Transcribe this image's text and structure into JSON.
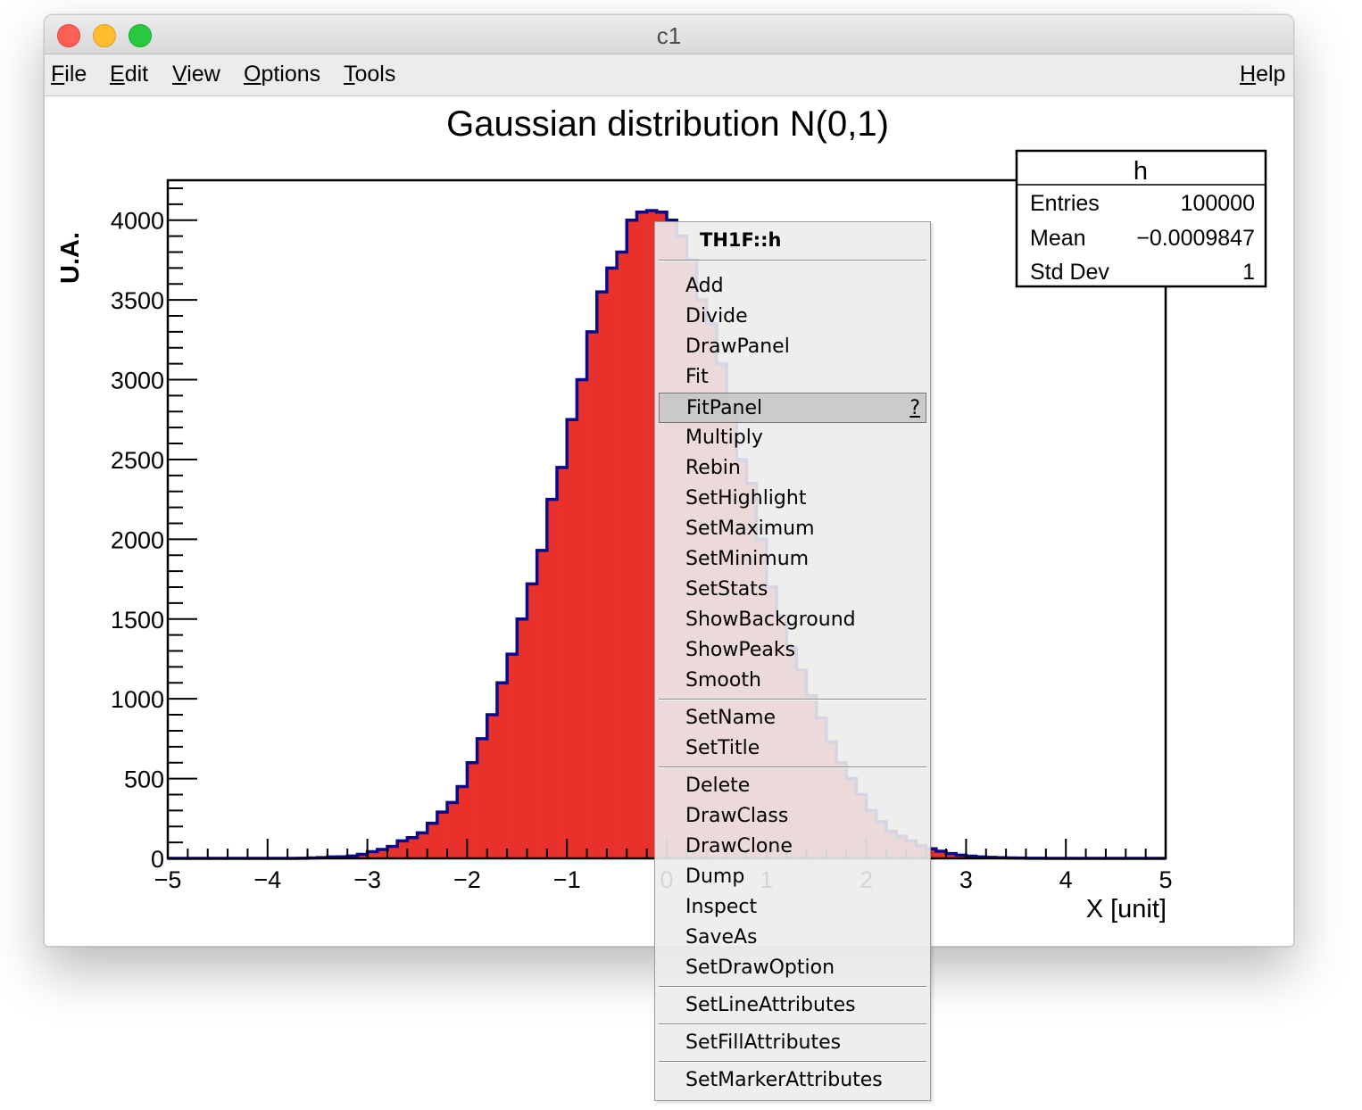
{
  "window": {
    "title": "c1",
    "menu": [
      {
        "underline": "F",
        "rest": "ile"
      },
      {
        "underline": "E",
        "rest": "dit"
      },
      {
        "underline": "V",
        "rest": "iew"
      },
      {
        "underline": "O",
        "rest": "ptions"
      },
      {
        "underline": "T",
        "rest": "ools"
      }
    ],
    "help": {
      "underline": "H",
      "rest": "elp"
    }
  },
  "colors": {
    "fill": "#e8312a",
    "line": "#0a0a8c"
  },
  "chart_data": {
    "type": "bar",
    "title": "Gaussian distribution N(0,1)",
    "xlabel": "X [unit]",
    "ylabel": "U.A.",
    "xlim": [
      -5,
      5
    ],
    "ylim": [
      0,
      4250
    ],
    "x_ticks": [
      "−5",
      "−4",
      "−3",
      "−2",
      "−1",
      "0",
      "1",
      "2",
      "3",
      "4",
      "5"
    ],
    "y_ticks": [
      "0",
      "500",
      "1000",
      "1500",
      "2000",
      "2500",
      "3000",
      "3500",
      "4000"
    ],
    "bin_low_edges": [
      -5.0,
      -4.9,
      -4.8,
      -4.7,
      -4.6,
      -4.5,
      -4.4,
      -4.3,
      -4.2,
      -4.1,
      -4.0,
      -3.9,
      -3.8,
      -3.7,
      -3.6,
      -3.5,
      -3.4,
      -3.3,
      -3.2,
      -3.1,
      -3.0,
      -2.9,
      -2.8,
      -2.7,
      -2.6,
      -2.5,
      -2.4,
      -2.3,
      -2.2,
      -2.1,
      -2.0,
      -1.9,
      -1.8,
      -1.7,
      -1.6,
      -1.5,
      -1.4,
      -1.3,
      -1.2,
      -1.1,
      -1.0,
      -0.9,
      -0.8,
      -0.7,
      -0.6,
      -0.5,
      -0.4,
      -0.3,
      -0.2,
      -0.1,
      0.0,
      0.1,
      0.2,
      0.3,
      0.4,
      0.5,
      0.6,
      0.7,
      0.8,
      0.9,
      1.0,
      1.1,
      1.2,
      1.3,
      1.4,
      1.5,
      1.6,
      1.7,
      1.8,
      1.9,
      2.0,
      2.1,
      2.2,
      2.3,
      2.4,
      2.5,
      2.6,
      2.7,
      2.8,
      2.9,
      3.0,
      3.1,
      3.2,
      3.3,
      3.4,
      3.5,
      3.6,
      3.7,
      3.8,
      3.9,
      4.0,
      4.1,
      4.2,
      4.3,
      4.4,
      4.5,
      4.6,
      4.7,
      4.8,
      4.9
    ],
    "values": [
      0,
      0,
      0,
      0,
      0,
      0,
      0,
      0,
      0,
      0,
      0,
      0,
      0,
      1,
      3,
      5,
      9,
      10,
      15,
      25,
      42,
      56,
      75,
      110,
      130,
      160,
      220,
      290,
      350,
      450,
      600,
      750,
      900,
      1100,
      1280,
      1500,
      1720,
      1930,
      2250,
      2450,
      2750,
      3000,
      3300,
      3550,
      3700,
      3800,
      4000,
      4050,
      4060,
      4050,
      4000,
      3900,
      3750,
      3500,
      3350,
      3100,
      2800,
      2500,
      2350,
      2000,
      1700,
      1520,
      1320,
      1180,
      1020,
      880,
      730,
      600,
      500,
      400,
      300,
      230,
      170,
      140,
      110,
      80,
      60,
      45,
      30,
      20,
      14,
      9,
      6,
      4,
      3,
      2,
      1,
      1,
      0,
      0,
      0,
      0,
      0,
      0,
      0,
      0,
      0,
      0,
      0,
      0
    ],
    "stats": {
      "name": "h",
      "rows": [
        {
          "label": "Entries",
          "value": "100000"
        },
        {
          "label": "Mean",
          "value": "−0.0009847"
        },
        {
          "label": "Std Dev",
          "value": "1"
        }
      ]
    }
  },
  "context_menu": {
    "title": "TH1F::h",
    "groups": [
      [
        "Add",
        "Divide",
        "DrawPanel",
        "Fit",
        "FitPanel",
        "Multiply",
        "Rebin",
        "SetHighlight",
        "SetMaximum",
        "SetMinimum",
        "SetStats",
        "ShowBackground",
        "ShowPeaks",
        "Smooth"
      ],
      [
        "SetName",
        "SetTitle"
      ],
      [
        "Delete",
        "DrawClass",
        "DrawClone",
        "Dump",
        "Inspect",
        "SaveAs",
        "SetDrawOption"
      ],
      [
        "SetLineAttributes"
      ],
      [
        "SetFillAttributes"
      ],
      [
        "SetMarkerAttributes"
      ]
    ],
    "highlighted": "FitPanel",
    "help_marker": "?"
  }
}
